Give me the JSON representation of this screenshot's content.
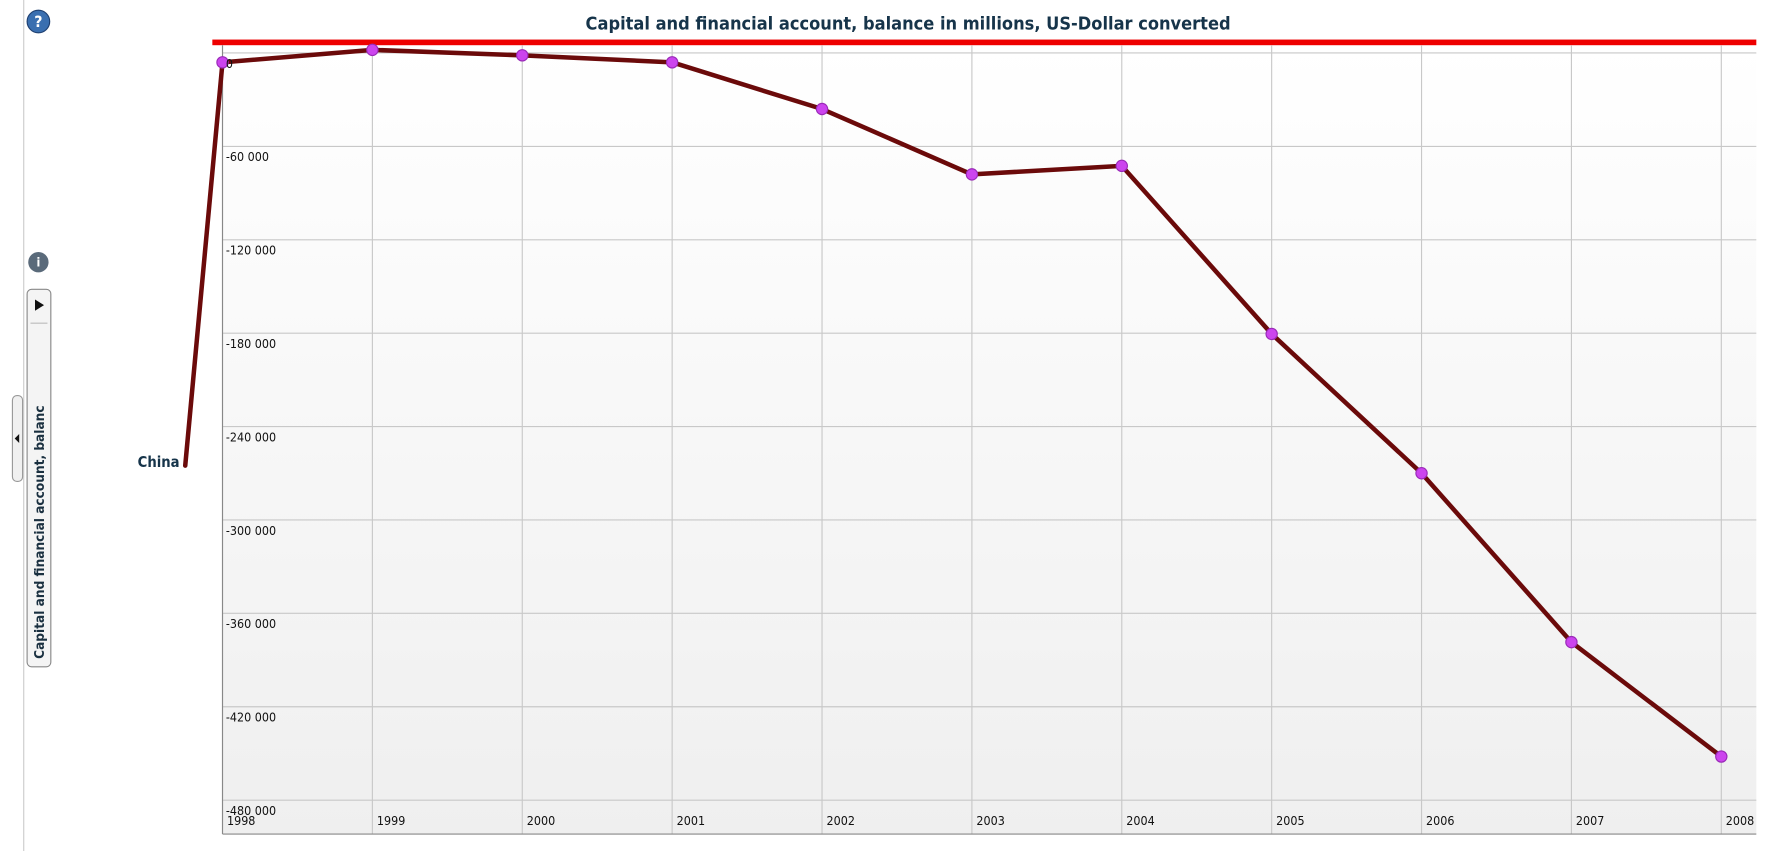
{
  "sidebar": {
    "tab_label": "Capital and financial account, balanc"
  },
  "chart_data": {
    "type": "line",
    "title": "Capital and financial account, balance in millions, US-Dollar converted",
    "categories": [
      "1998",
      "1999",
      "2000",
      "2001",
      "2002",
      "2003",
      "2004",
      "2005",
      "2006",
      "2007",
      "2008"
    ],
    "series": [
      {
        "name": "China",
        "color": "#6b0a0a",
        "marker_color": "#cc44ee",
        "values": [
          -6000,
          2000,
          -1500,
          -6000,
          -36000,
          -78000,
          -72500,
          -180500,
          -270000,
          -378500,
          -452000
        ]
      }
    ],
    "ylim": [
      -480000,
      5000
    ],
    "yticks": [
      {
        "value": 0,
        "label": "0"
      },
      {
        "value": -60000,
        "label": "-60 000"
      },
      {
        "value": -120000,
        "label": "-120 000"
      },
      {
        "value": -180000,
        "label": "-180 000"
      },
      {
        "value": -240000,
        "label": "-240 000"
      },
      {
        "value": -300000,
        "label": "-300 000"
      },
      {
        "value": -360000,
        "label": "-360 000"
      },
      {
        "value": -420000,
        "label": "-420 000"
      },
      {
        "value": -480000,
        "label": "-480 000"
      }
    ],
    "grid": true
  }
}
